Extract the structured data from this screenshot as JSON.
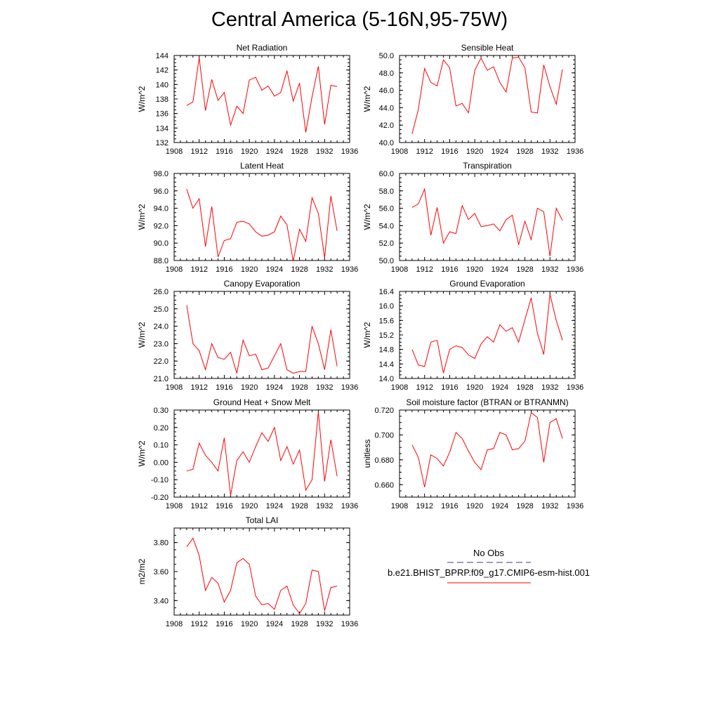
{
  "title": "Central America (5-16N,95-75W)",
  "chart_data": [
    {
      "type": "line",
      "title": "Net Radiation",
      "ylabel": "W/m^2",
      "x": [
        1910,
        1911,
        1912,
        1913,
        1914,
        1915,
        1916,
        1917,
        1918,
        1919,
        1920,
        1921,
        1922,
        1923,
        1924,
        1925,
        1926,
        1927,
        1928,
        1929,
        1930,
        1931,
        1932,
        1933,
        1934
      ],
      "series": [
        {
          "values": [
            137.1,
            137.6,
            143.7,
            136.4,
            140.7,
            137.8,
            138.9,
            134.4,
            137.0,
            136.0,
            140.6,
            141.0,
            139.2,
            139.8,
            138.4,
            138.9,
            141.9,
            137.7,
            140.2,
            133.4,
            138.3,
            142.5,
            134.5,
            139.9,
            139.7
          ]
        }
      ],
      "xlim": [
        1908,
        1936
      ],
      "ylim": [
        132,
        144
      ],
      "xticks": [
        "1908",
        "1912",
        "1916",
        "1920",
        "1924",
        "1928",
        "1932",
        "1936"
      ],
      "yticks": [
        "132",
        "134",
        "136",
        "138",
        "140",
        "142",
        "144"
      ],
      "color": "#ff0000"
    },
    {
      "type": "line",
      "title": "Sensible Heat",
      "ylabel": "W/m^2",
      "x": [
        1910,
        1911,
        1912,
        1913,
        1914,
        1915,
        1916,
        1917,
        1918,
        1919,
        1920,
        1921,
        1922,
        1923,
        1924,
        1925,
        1926,
        1927,
        1928,
        1929,
        1930,
        1931,
        1932,
        1933,
        1934
      ],
      "series": [
        {
          "values": [
            41.0,
            43.8,
            48.5,
            46.9,
            46.5,
            49.5,
            48.6,
            44.2,
            44.5,
            43.4,
            48.3,
            49.7,
            48.3,
            48.7,
            46.9,
            45.8,
            49.7,
            49.8,
            48.6,
            43.5,
            43.4,
            48.9,
            46.4,
            44.4,
            48.4
          ]
        }
      ],
      "xlim": [
        1908,
        1936
      ],
      "ylim": [
        40,
        50
      ],
      "xticks": [
        "1908",
        "1912",
        "1916",
        "1920",
        "1924",
        "1928",
        "1932",
        "1936"
      ],
      "yticks": [
        "40.0",
        "42.0",
        "44.0",
        "46.0",
        "48.0",
        "50.0"
      ],
      "color": "#ff0000"
    },
    {
      "type": "line",
      "title": "Latent Heat",
      "ylabel": "W/m^2",
      "x": [
        1910,
        1911,
        1912,
        1913,
        1914,
        1915,
        1916,
        1917,
        1918,
        1919,
        1920,
        1921,
        1922,
        1923,
        1924,
        1925,
        1926,
        1927,
        1928,
        1929,
        1930,
        1931,
        1932,
        1933,
        1934
      ],
      "series": [
        {
          "values": [
            96.2,
            94.0,
            95.1,
            89.6,
            94.2,
            88.4,
            90.3,
            90.5,
            92.4,
            92.5,
            92.2,
            91.3,
            90.8,
            90.9,
            91.3,
            93.1,
            92.1,
            87.9,
            91.6,
            90.2,
            95.2,
            93.4,
            88.3,
            95.4,
            91.4
          ]
        }
      ],
      "xlim": [
        1908,
        1936
      ],
      "ylim": [
        88,
        98
      ],
      "xticks": [
        "1908",
        "1912",
        "1916",
        "1920",
        "1924",
        "1928",
        "1932",
        "1936"
      ],
      "yticks": [
        "88.0",
        "90.0",
        "92.0",
        "94.0",
        "96.0",
        "98.0"
      ],
      "color": "#ff0000"
    },
    {
      "type": "line",
      "title": "Transpiration",
      "ylabel": "W/m^2",
      "x": [
        1910,
        1911,
        1912,
        1913,
        1914,
        1915,
        1916,
        1917,
        1918,
        1919,
        1920,
        1921,
        1922,
        1923,
        1924,
        1925,
        1926,
        1927,
        1928,
        1929,
        1930,
        1931,
        1932,
        1933,
        1934
      ],
      "series": [
        {
          "values": [
            56.1,
            56.5,
            58.2,
            52.9,
            56.1,
            52.0,
            53.3,
            53.1,
            56.3,
            54.7,
            55.4,
            53.9,
            54.0,
            54.2,
            53.4,
            54.7,
            55.2,
            51.8,
            54.5,
            52.4,
            56.0,
            55.6,
            50.5,
            56.0,
            54.6
          ]
        }
      ],
      "xlim": [
        1908,
        1936
      ],
      "ylim": [
        50,
        60
      ],
      "xticks": [
        "1908",
        "1912",
        "1916",
        "1920",
        "1924",
        "1928",
        "1932",
        "1936"
      ],
      "yticks": [
        "50.0",
        "52.0",
        "54.0",
        "56.0",
        "58.0",
        "60.0"
      ],
      "color": "#ff0000"
    },
    {
      "type": "line",
      "title": "Canopy Evaporation",
      "ylabel": "W/m^2",
      "x": [
        1910,
        1911,
        1912,
        1913,
        1914,
        1915,
        1916,
        1917,
        1918,
        1919,
        1920,
        1921,
        1922,
        1923,
        1924,
        1925,
        1926,
        1927,
        1928,
        1929,
        1930,
        1931,
        1932,
        1933,
        1934
      ],
      "series": [
        {
          "values": [
            25.2,
            23.0,
            22.6,
            21.5,
            23.0,
            22.2,
            22.1,
            22.5,
            21.3,
            23.2,
            22.3,
            22.4,
            21.5,
            21.6,
            22.3,
            23.0,
            21.5,
            21.3,
            21.4,
            21.4,
            24.0,
            23.0,
            21.5,
            23.8,
            21.7
          ]
        }
      ],
      "xlim": [
        1908,
        1936
      ],
      "ylim": [
        21,
        26
      ],
      "xticks": [
        "1908",
        "1912",
        "1916",
        "1920",
        "1924",
        "1928",
        "1932",
        "1936"
      ],
      "yticks": [
        "21.0",
        "22.0",
        "23.0",
        "24.0",
        "25.0",
        "26.0"
      ],
      "color": "#ff0000"
    },
    {
      "type": "line",
      "title": "Ground Evaporation",
      "ylabel": "W/m^2",
      "x": [
        1910,
        1911,
        1912,
        1913,
        1914,
        1915,
        1916,
        1917,
        1918,
        1919,
        1920,
        1921,
        1922,
        1923,
        1924,
        1925,
        1926,
        1927,
        1928,
        1929,
        1930,
        1931,
        1932,
        1933,
        1934
      ],
      "series": [
        {
          "values": [
            14.8,
            14.37,
            14.33,
            15.0,
            15.05,
            14.15,
            14.8,
            14.9,
            14.85,
            14.65,
            14.55,
            14.95,
            15.15,
            15.0,
            15.48,
            15.3,
            15.4,
            15.0,
            15.62,
            16.22,
            15.25,
            14.66,
            16.32,
            15.6,
            15.05
          ]
        }
      ],
      "xlim": [
        1908,
        1936
      ],
      "ylim": [
        14.0,
        16.4
      ],
      "xticks": [
        "1908",
        "1912",
        "1916",
        "1920",
        "1924",
        "1928",
        "1932",
        "1936"
      ],
      "yticks": [
        "14.0",
        "14.4",
        "14.8",
        "15.2",
        "15.6",
        "16.0",
        "16.4"
      ],
      "color": "#ff0000"
    },
    {
      "type": "line",
      "title": "Ground Heat + Snow Melt",
      "ylabel": "W/m^2",
      "x": [
        1910,
        1911,
        1912,
        1913,
        1914,
        1915,
        1916,
        1917,
        1918,
        1919,
        1920,
        1921,
        1922,
        1923,
        1924,
        1925,
        1926,
        1927,
        1928,
        1929,
        1930,
        1931,
        1932,
        1933,
        1934
      ],
      "series": [
        {
          "values": [
            -0.05,
            -0.04,
            0.11,
            0.04,
            0.0,
            -0.05,
            0.14,
            -0.19,
            0.01,
            0.06,
            0.0,
            0.09,
            0.17,
            0.12,
            0.2,
            0.01,
            0.09,
            -0.01,
            0.07,
            -0.16,
            -0.1,
            0.29,
            -0.11,
            0.13,
            -0.08
          ]
        }
      ],
      "xlim": [
        1908,
        1936
      ],
      "ylim": [
        -0.2,
        0.3
      ],
      "xticks": [
        "1908",
        "1912",
        "1916",
        "1920",
        "1924",
        "1928",
        "1932",
        "1936"
      ],
      "yticks": [
        "-0.20",
        "-0.10",
        "0.00",
        "0.10",
        "0.20",
        "0.30"
      ],
      "color": "#ff0000"
    },
    {
      "type": "line",
      "title": "Soil moisture factor (BTRAN or BTRANMN)",
      "ylabel": "unitless",
      "x": [
        1910,
        1911,
        1912,
        1913,
        1914,
        1915,
        1916,
        1917,
        1918,
        1919,
        1920,
        1921,
        1922,
        1923,
        1924,
        1925,
        1926,
        1927,
        1928,
        1929,
        1930,
        1931,
        1932,
        1933,
        1934
      ],
      "series": [
        {
          "values": [
            0.692,
            0.682,
            0.658,
            0.684,
            0.681,
            0.675,
            0.686,
            0.702,
            0.697,
            0.687,
            0.678,
            0.672,
            0.688,
            0.689,
            0.702,
            0.7,
            0.688,
            0.689,
            0.695,
            0.718,
            0.714,
            0.678,
            0.71,
            0.713,
            0.697
          ]
        }
      ],
      "xlim": [
        1908,
        1936
      ],
      "ylim": [
        0.65,
        0.72
      ],
      "xticks": [
        "1908",
        "1912",
        "1916",
        "1920",
        "1924",
        "1928",
        "1932",
        "1936"
      ],
      "yticks": [
        "0.660",
        "0.680",
        "0.700",
        "0.720"
      ],
      "ytick_values": [
        0.66,
        0.68,
        0.7,
        0.72
      ],
      "color": "#ff0000"
    },
    {
      "type": "line",
      "title": "Total LAI",
      "ylabel": "m2/m2",
      "x": [
        1910,
        1911,
        1912,
        1913,
        1914,
        1915,
        1916,
        1917,
        1918,
        1919,
        1920,
        1921,
        1922,
        1923,
        1924,
        1925,
        1926,
        1927,
        1928,
        1929,
        1930,
        1931,
        1932,
        1933,
        1934
      ],
      "series": [
        {
          "values": [
            3.77,
            3.83,
            3.71,
            3.47,
            3.56,
            3.52,
            3.39,
            3.47,
            3.66,
            3.69,
            3.65,
            3.43,
            3.37,
            3.38,
            3.34,
            3.47,
            3.5,
            3.37,
            3.31,
            3.38,
            3.61,
            3.6,
            3.33,
            3.49,
            3.5
          ]
        }
      ],
      "xlim": [
        1908,
        1936
      ],
      "ylim": [
        3.3,
        3.9
      ],
      "xticks": [
        "1908",
        "1912",
        "1916",
        "1920",
        "1924",
        "1928",
        "1932",
        "1936"
      ],
      "yticks": [
        "3.40",
        "3.60",
        "3.80"
      ],
      "ytick_values": [
        3.4,
        3.6,
        3.8
      ],
      "color": "#ff0000"
    }
  ],
  "legend": {
    "entries": [
      {
        "label": "No Obs",
        "style": "dashed",
        "color": "#3a3a9a"
      },
      {
        "label": "b.e21.BHIST_BPRP.f09_g17.CMIP6-esm-hist.001",
        "style": "solid",
        "color": "#ff0000"
      }
    ]
  }
}
